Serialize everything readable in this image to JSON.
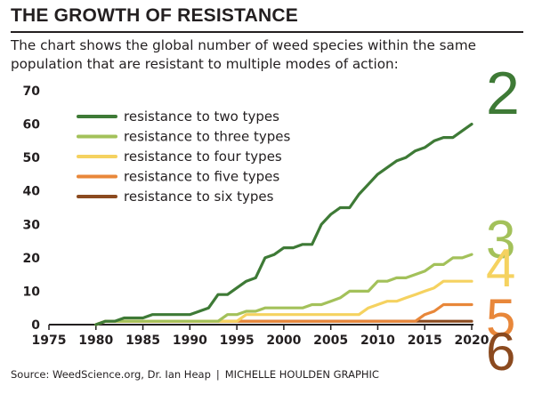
{
  "header": {
    "title": "THE GROWTH OF RESISTANCE",
    "subtitle": "The chart shows the global number of weed species within the same population that are resistant to multiple modes of action:"
  },
  "footer": {
    "source": "Source: WeedScience.org, Dr. Ian Heap",
    "separator": "|",
    "credit": "MICHELLE HOULDEN GRAPHIC"
  },
  "chart_data": {
    "type": "line",
    "xlabel": "",
    "ylabel": "",
    "xlim": [
      1975,
      2020
    ],
    "ylim": [
      0,
      70
    ],
    "x_ticks": [
      "1975",
      "1980",
      "1985",
      "1990",
      "1995",
      "2000",
      "2005",
      "2010",
      "2015",
      "2020"
    ],
    "y_ticks": [
      "0",
      "10",
      "20",
      "30",
      "40",
      "50",
      "60",
      "70"
    ],
    "grid": false,
    "legend_position": "top-left",
    "series": [
      {
        "name": "resistance to two types",
        "color": "#3e7a36",
        "end_label": "2",
        "x": [
          1980,
          1981,
          1982,
          1983,
          1985,
          1986,
          1987,
          1990,
          1991,
          1992,
          1993,
          1994,
          1995,
          1996,
          1997,
          1998,
          1999,
          2000,
          2001,
          2002,
          2003,
          2004,
          2005,
          2006,
          2007,
          2008,
          2009,
          2010,
          2011,
          2012,
          2013,
          2014,
          2015,
          2016,
          2017,
          2018,
          2019,
          2020
        ],
        "y": [
          0,
          1,
          1,
          2,
          2,
          3,
          3,
          3,
          4,
          5,
          9,
          9,
          11,
          13,
          14,
          20,
          21,
          23,
          23,
          24,
          24,
          30,
          33,
          35,
          35,
          39,
          42,
          45,
          47,
          49,
          50,
          52,
          53,
          55,
          56,
          56,
          58,
          60
        ]
      },
      {
        "name": "resistance to three types",
        "color": "#a3c15a",
        "end_label": "3",
        "x": [
          1980,
          1981,
          1993,
          1994,
          1995,
          1996,
          1997,
          1998,
          2002,
          2003,
          2004,
          2005,
          2006,
          2007,
          2008,
          2009,
          2010,
          2011,
          2012,
          2013,
          2014,
          2015,
          2016,
          2017,
          2018,
          2019,
          2020
        ],
        "y": [
          0,
          1,
          1,
          3,
          3,
          4,
          4,
          5,
          5,
          6,
          6,
          7,
          8,
          10,
          10,
          10,
          13,
          13,
          14,
          14,
          15,
          16,
          18,
          18,
          20,
          20,
          21
        ]
      },
      {
        "name": "resistance to four types",
        "color": "#f5d260",
        "end_label": "4",
        "x": [
          1980,
          1981,
          1995,
          1996,
          2008,
          2009,
          2010,
          2011,
          2012,
          2013,
          2014,
          2015,
          2016,
          2017,
          2018,
          2019,
          2020
        ],
        "y": [
          0,
          1,
          1,
          3,
          3,
          5,
          6,
          7,
          7,
          8,
          9,
          10,
          11,
          13,
          13,
          13,
          13
        ]
      },
      {
        "name": "resistance to five types",
        "color": "#e8873a",
        "end_label": "5",
        "x": [
          1980,
          1981,
          2014,
          2015,
          2016,
          2017,
          2018,
          2019,
          2020
        ],
        "y": [
          0,
          1,
          1,
          3,
          4,
          6,
          6,
          6,
          6
        ]
      },
      {
        "name": "resistance to six types",
        "color": "#8b4a1f",
        "end_label": "6",
        "x": [
          1980,
          1981,
          2014,
          2015,
          2020
        ],
        "y": [
          0,
          1,
          1,
          1,
          1
        ]
      }
    ]
  }
}
